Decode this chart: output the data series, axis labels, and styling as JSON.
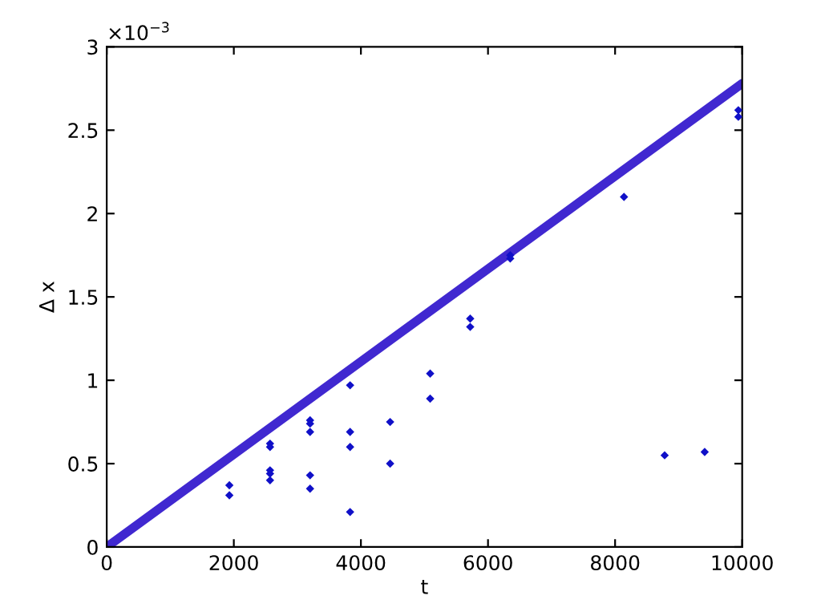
{
  "chart_data": {
    "type": "scatter",
    "xlabel": "t",
    "ylabel": "Δ x",
    "annotations": [
      "×10$^{−3}$"
    ],
    "xlim": [
      0,
      10000
    ],
    "ylim": [
      0,
      3
    ],
    "xticks": [
      0,
      2000,
      4000,
      6000,
      8000,
      10000
    ],
    "yticks": [
      0,
      0.5,
      1,
      1.5,
      2,
      2.5,
      3
    ],
    "grid": false,
    "legend": false,
    "series": [
      {
        "type": "line",
        "color": "#4028d0",
        "marker": "none",
        "x": [
          0,
          10000
        ],
        "values": [
          0,
          2.78
        ]
      },
      {
        "color": "#1010c8",
        "marker": "diamond",
        "x": [
          1930,
          1930,
          2570,
          2570,
          2570,
          2570,
          2570,
          3200,
          3200,
          3200,
          3200,
          3200,
          3830,
          3830,
          3830,
          3830,
          4460,
          4460,
          5090,
          5090,
          5720,
          5720,
          6350,
          6350,
          8140,
          8780,
          9410,
          9940,
          9940
        ],
        "values": [
          0.37,
          0.31,
          0.62,
          0.6,
          0.46,
          0.44,
          0.4,
          0.76,
          0.74,
          0.69,
          0.43,
          0.35,
          0.97,
          0.69,
          0.6,
          0.21,
          0.75,
          0.5,
          1.04,
          0.89,
          1.37,
          1.32,
          1.75,
          1.73,
          2.1,
          0.55,
          0.57,
          2.62,
          2.58
        ]
      }
    ]
  }
}
